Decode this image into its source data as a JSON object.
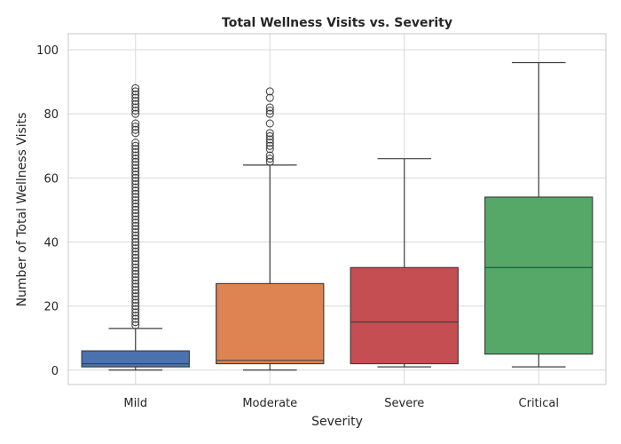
{
  "chart_data": {
    "type": "box",
    "title": "Total Wellness Visits vs. Severity",
    "xlabel": "Severity",
    "ylabel": "Number of Total Wellness Visits",
    "ylim": [
      -4.5,
      105
    ],
    "yticks": [
      0,
      20,
      40,
      60,
      80,
      100
    ],
    "grid": true,
    "categories": [
      "Mild",
      "Moderate",
      "Severe",
      "Critical"
    ],
    "boxes": [
      {
        "category": "Mild",
        "color": "#4c72b0",
        "whisker_low": 0,
        "q1": 1,
        "median": 2,
        "q3": 6,
        "whisker_high": 13,
        "outliers": [
          14,
          15,
          16,
          17,
          18,
          19,
          20,
          21,
          22,
          23,
          24,
          25,
          26,
          27,
          28,
          29,
          30,
          31,
          32,
          33,
          34,
          35,
          36,
          37,
          38,
          39,
          40,
          41,
          42,
          43,
          44,
          45,
          46,
          47,
          48,
          49,
          50,
          51,
          52,
          53,
          54,
          55,
          56,
          57,
          58,
          59,
          60,
          61,
          62,
          63,
          64,
          65,
          66,
          67,
          68,
          69,
          70,
          71,
          74,
          75,
          76,
          77,
          80,
          81,
          82,
          83,
          84,
          85,
          86,
          87,
          88
        ]
      },
      {
        "category": "Moderate",
        "color": "#dd8452",
        "whisker_low": 0,
        "q1": 2,
        "median": 3,
        "q3": 27,
        "whisker_high": 64,
        "outliers": [
          65,
          66,
          67,
          69,
          70,
          71,
          72,
          73,
          74,
          77,
          80,
          81,
          82,
          85,
          87
        ]
      },
      {
        "category": "Severe",
        "color": "#c44e52",
        "whisker_low": 1,
        "q1": 2,
        "median": 15,
        "q3": 32,
        "whisker_high": 66,
        "outliers": []
      },
      {
        "category": "Critical",
        "color": "#55a868",
        "whisker_low": 1,
        "q1": 5,
        "median": 32,
        "q3": 54,
        "whisker_high": 96,
        "outliers": []
      }
    ]
  }
}
